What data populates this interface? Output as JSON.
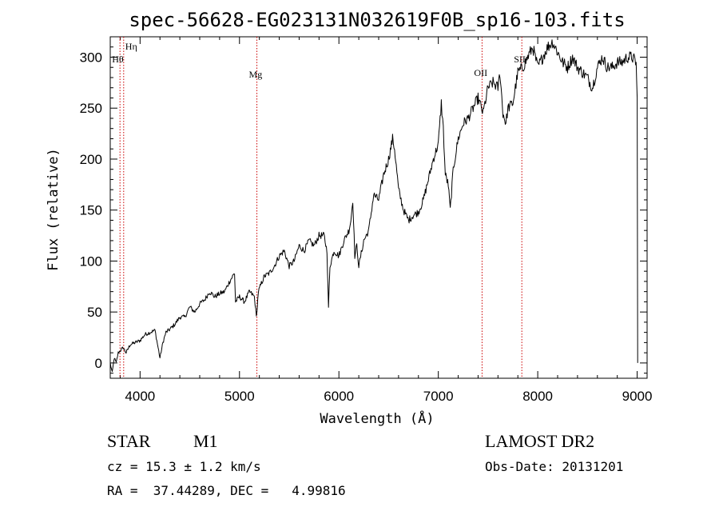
{
  "chart_data": {
    "type": "line",
    "title": "spec-56628-EG023131N032619F0B_sp16-103.fits",
    "xlabel": "Wavelength (Å)",
    "ylabel": "Flux (relative)",
    "xlim": [
      3700,
      9100
    ],
    "ylim": [
      -15,
      320
    ],
    "xticks": [
      4000,
      5000,
      6000,
      7000,
      8000,
      9000
    ],
    "yticks": [
      0,
      50,
      100,
      150,
      200,
      250,
      300
    ],
    "line_color": "#000000",
    "marker_color": "#cc0000",
    "grid": false,
    "legend": "none",
    "spectral_lines": [
      {
        "label": "Hη",
        "wavelength": 3835
      },
      {
        "label": "Hθ",
        "wavelength": 3798
      },
      {
        "label": "Mg",
        "wavelength": 5175
      },
      {
        "label": "OII",
        "wavelength": 7440
      },
      {
        "label": "SII",
        "wavelength": 7840
      }
    ],
    "series": [
      {
        "x": [
          3700,
          3720,
          3740,
          3760,
          3780,
          3800,
          3830,
          3860,
          3900,
          3950,
          4000,
          4050,
          4100,
          4150,
          4200,
          4230,
          4260,
          4300,
          4350,
          4400,
          4450,
          4500,
          4550,
          4600,
          4650,
          4700,
          4750,
          4800,
          4850,
          4900,
          4950,
          4960,
          5000,
          5050,
          5100,
          5150,
          5170,
          5190,
          5220,
          5250,
          5300,
          5350,
          5400,
          5450,
          5500,
          5550,
          5600,
          5650,
          5700,
          5750,
          5800,
          5850,
          5880,
          5895,
          5910,
          5950,
          6000,
          6050,
          6100,
          6120,
          6140,
          6160,
          6180,
          6200,
          6250,
          6300,
          6350,
          6400,
          6450,
          6500,
          6540,
          6560,
          6600,
          6650,
          6700,
          6750,
          6800,
          6850,
          6900,
          6950,
          7000,
          7030,
          7050,
          7070,
          7100,
          7120,
          7150,
          7200,
          7250,
          7300,
          7350,
          7400,
          7450,
          7500,
          7550,
          7600,
          7620,
          7650,
          7680,
          7700,
          7750,
          7800,
          7850,
          7900,
          7950,
          8000,
          8050,
          8100,
          8150,
          8200,
          8250,
          8300,
          8350,
          8400,
          8450,
          8500,
          8550,
          8600,
          8650,
          8700,
          8750,
          8800,
          8850,
          8900,
          8950,
          8990,
          9000,
          9005
        ],
        "y": [
          0,
          -10,
          5,
          0,
          10,
          12,
          15,
          10,
          18,
          20,
          22,
          28,
          30,
          32,
          5,
          20,
          30,
          33,
          38,
          45,
          45,
          55,
          50,
          58,
          62,
          70,
          65,
          68,
          70,
          80,
          88,
          60,
          65,
          60,
          70,
          65,
          45,
          70,
          78,
          85,
          88,
          95,
          105,
          110,
          95,
          100,
          115,
          110,
          120,
          115,
          125,
          125,
          110,
          55,
          95,
          110,
          105,
          120,
          130,
          140,
          160,
          105,
          115,
          95,
          120,
          130,
          165,
          160,
          185,
          200,
          220,
          210,
          170,
          150,
          140,
          145,
          148,
          160,
          180,
          200,
          215,
          255,
          230,
          185,
          175,
          150,
          190,
          220,
          235,
          240,
          250,
          260,
          245,
          270,
          275,
          270,
          285,
          245,
          235,
          250,
          255,
          285,
          290,
          300,
          310,
          290,
          300,
          310,
          315,
          305,
          295,
          290,
          300,
          290,
          285,
          280,
          270,
          290,
          300,
          290,
          290,
          295,
          295,
          300,
          300,
          295,
          260,
          0
        ]
      }
    ]
  },
  "info": {
    "object_class": "STAR",
    "subclass": "M1",
    "survey": "LAMOST DR2",
    "cz": "cz = 15.3 ± 1.2 km/s",
    "obs_date": "Obs-Date: 20131201",
    "radec": "RA =  37.44289, DEC =   4.99816"
  }
}
